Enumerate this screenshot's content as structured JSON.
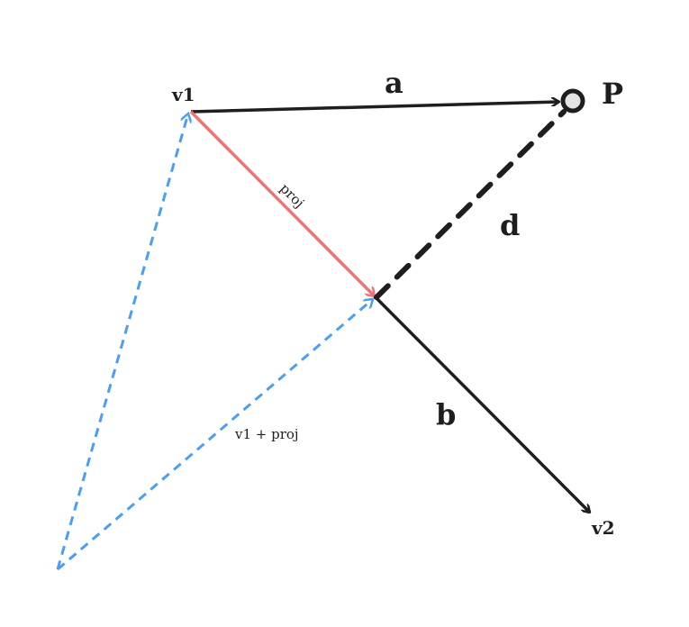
{
  "labels": {
    "v1": "v1",
    "a": "a",
    "P": "P",
    "proj": "proj",
    "d": "d",
    "b": "b",
    "v1_plus_proj": "v1 + proj",
    "v2": "v2"
  },
  "colors": {
    "ink": "#1e1e1e",
    "proj": "#ec7474",
    "helper": "#4a9ff0",
    "point_fill": "#e4e4e4"
  }
}
